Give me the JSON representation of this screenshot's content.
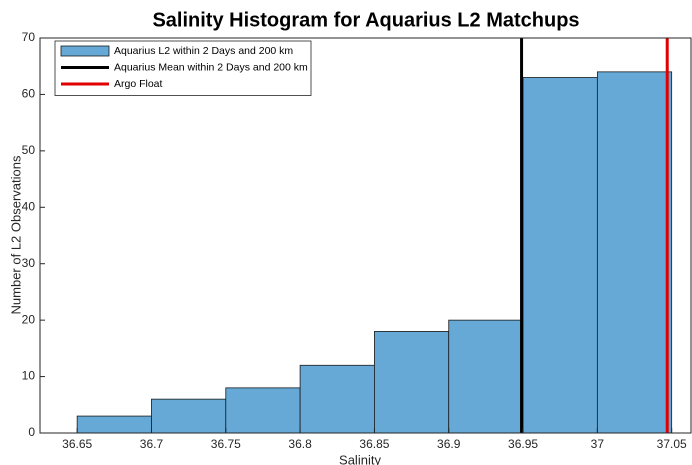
{
  "chart_data": {
    "type": "histogram",
    "title": "Salinity Histogram for Aquarius L2 Matchups",
    "xlabel": "Salinity",
    "ylabel": "Number of L2 Observations",
    "bins": [
      36.65,
      36.7,
      36.75,
      36.8,
      36.85,
      36.9,
      36.95,
      37,
      37.05
    ],
    "series": [
      {
        "name": "Aquarius L2 within 2 Days and 200 km",
        "color": "#66a9d6",
        "values": [
          3,
          6,
          8,
          12,
          18,
          20,
          63,
          64
        ]
      }
    ],
    "lines": [
      {
        "name": "Aquarius Mean within 2 Days and 200 km",
        "color": "#000000",
        "x": 36.949
      },
      {
        "name": "Argo Float",
        "color": "#e00000",
        "x": 37.047
      }
    ],
    "xlim": [
      36.625,
      37.063
    ],
    "xticks": [
      36.65,
      36.7,
      36.75,
      36.8,
      36.85,
      36.9,
      36.95,
      37,
      37.05
    ],
    "ylim": [
      0,
      70
    ],
    "yticks": [
      0,
      10,
      20,
      30,
      40,
      50,
      60,
      70
    ],
    "grid": false,
    "legend": "upper left"
  }
}
